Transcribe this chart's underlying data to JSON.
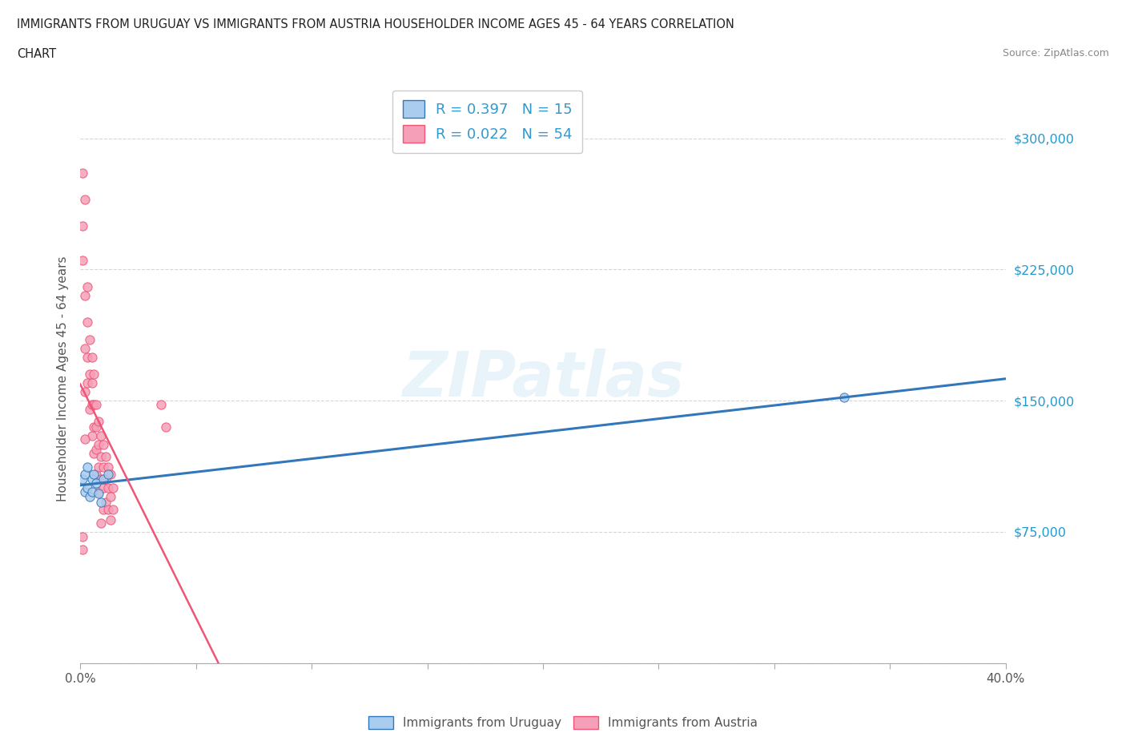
{
  "title_line1": "IMMIGRANTS FROM URUGUAY VS IMMIGRANTS FROM AUSTRIA HOUSEHOLDER INCOME AGES 45 - 64 YEARS CORRELATION",
  "title_line2": "CHART",
  "source": "Source: ZipAtlas.com",
  "ylabel": "Householder Income Ages 45 - 64 years",
  "xlim": [
    0,
    0.4
  ],
  "ylim": [
    0,
    325000
  ],
  "yticks": [
    0,
    75000,
    150000,
    225000,
    300000
  ],
  "ytick_labels": [
    "",
    "$75,000",
    "$150,000",
    "$225,000",
    "$300,000"
  ],
  "xticks": [
    0.0,
    0.05,
    0.1,
    0.15,
    0.2,
    0.25,
    0.3,
    0.35,
    0.4
  ],
  "uruguay_color": "#aaccee",
  "austria_color": "#f5a0b8",
  "uruguay_line_color": "#3377bb",
  "austria_line_color": "#ee5577",
  "uruguay_R": 0.397,
  "uruguay_N": 15,
  "austria_R": 0.022,
  "austria_N": 54,
  "watermark": "ZIPatlas",
  "uruguay_x": [
    0.001,
    0.002,
    0.002,
    0.003,
    0.003,
    0.004,
    0.005,
    0.005,
    0.006,
    0.007,
    0.008,
    0.009,
    0.01,
    0.012,
    0.33
  ],
  "uruguay_y": [
    105000,
    98000,
    108000,
    112000,
    100000,
    95000,
    105000,
    98000,
    108000,
    103000,
    97000,
    92000,
    105000,
    108000,
    152000
  ],
  "austria_x": [
    0.001,
    0.001,
    0.001,
    0.002,
    0.002,
    0.002,
    0.002,
    0.003,
    0.003,
    0.003,
    0.003,
    0.004,
    0.004,
    0.004,
    0.005,
    0.005,
    0.005,
    0.005,
    0.006,
    0.006,
    0.006,
    0.006,
    0.007,
    0.007,
    0.007,
    0.007,
    0.008,
    0.008,
    0.008,
    0.008,
    0.009,
    0.009,
    0.009,
    0.01,
    0.01,
    0.01,
    0.01,
    0.011,
    0.011,
    0.011,
    0.012,
    0.012,
    0.012,
    0.013,
    0.013,
    0.013,
    0.014,
    0.014,
    0.035,
    0.037,
    0.009,
    0.002,
    0.001,
    0.001
  ],
  "austria_y": [
    280000,
    250000,
    230000,
    265000,
    210000,
    180000,
    155000,
    215000,
    195000,
    175000,
    160000,
    185000,
    165000,
    145000,
    175000,
    160000,
    148000,
    130000,
    165000,
    148000,
    135000,
    120000,
    148000,
    135000,
    122000,
    108000,
    138000,
    125000,
    112000,
    98000,
    130000,
    118000,
    105000,
    125000,
    112000,
    100000,
    88000,
    118000,
    105000,
    92000,
    112000,
    100000,
    88000,
    108000,
    95000,
    82000,
    100000,
    88000,
    148000,
    135000,
    80000,
    128000,
    72000,
    65000
  ]
}
